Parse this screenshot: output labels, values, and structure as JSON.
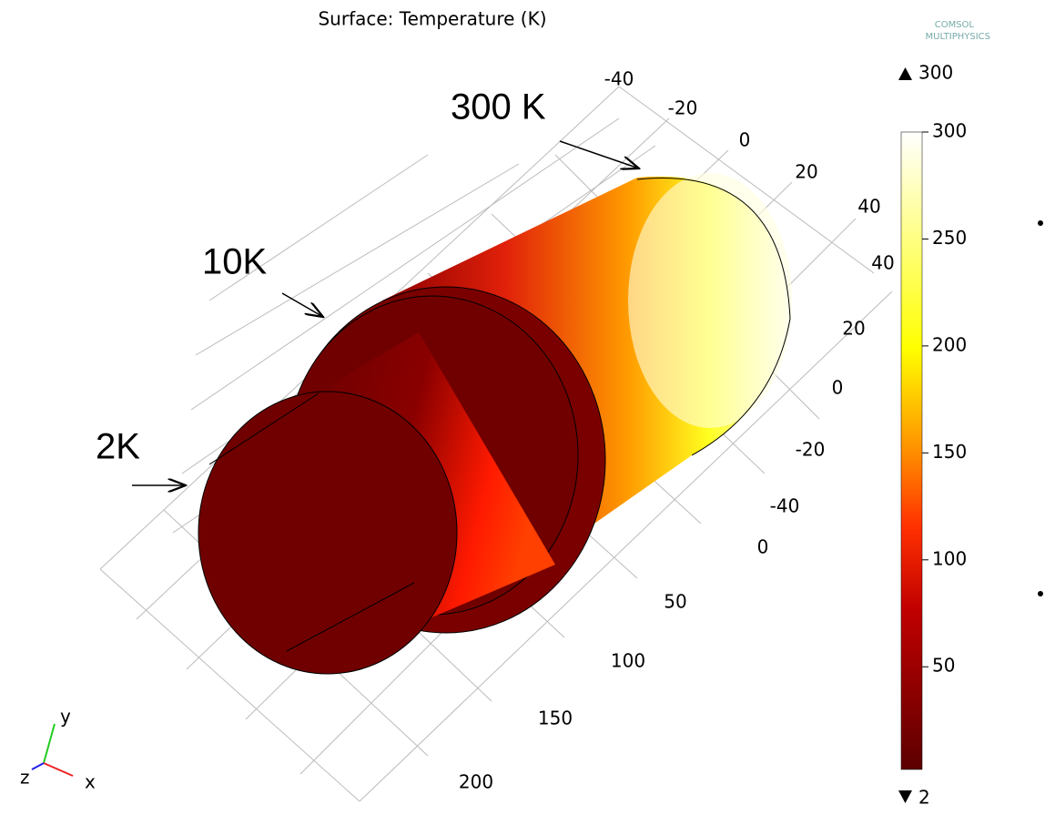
{
  "title": "Surface: Temperature (K)",
  "logo": [
    "COMSOL",
    "MULTIPHYSICS"
  ],
  "annotations": [
    "300 K",
    "10K",
    "2K"
  ],
  "axis_ticks": {
    "top": [
      -40,
      -20,
      0,
      20,
      40
    ],
    "right": [
      40,
      20,
      0,
      -20,
      -40
    ],
    "bottom": [
      0,
      50,
      100,
      150,
      200
    ]
  },
  "colorbar": {
    "max": 300,
    "min": 2,
    "lim": [
      2,
      300
    ],
    "ticks": [
      50,
      100,
      150,
      200,
      250,
      300
    ]
  },
  "triad": [
    "y",
    "z",
    "x"
  ]
}
